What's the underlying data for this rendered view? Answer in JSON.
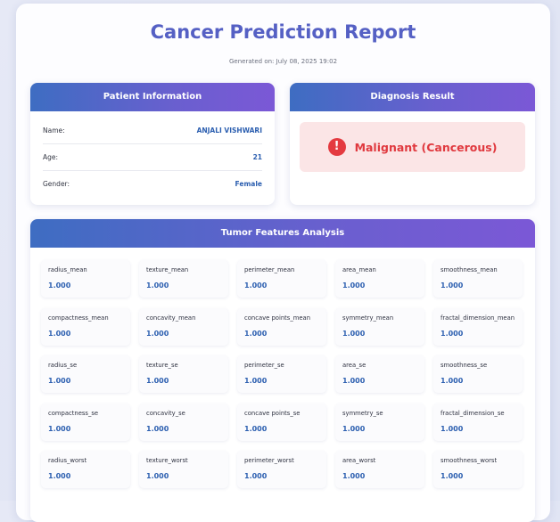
{
  "report": {
    "title": "Cancer Prediction Report",
    "generated": "Generated on: July 08, 2025 19:02"
  },
  "patient": {
    "header": "Patient Information",
    "rows": [
      {
        "label": "Name:",
        "value": "ANJALI VISHWARI"
      },
      {
        "label": "Age:",
        "value": "21"
      },
      {
        "label": "Gender:",
        "value": "Female"
      }
    ]
  },
  "diagnosis": {
    "header": "Diagnosis Result",
    "icon": "alert-icon",
    "icon_glyph": "!",
    "result": "Malignant (Cancerous)",
    "color": "#e0393f"
  },
  "features": {
    "header": "Tumor Features Analysis",
    "items": [
      {
        "name": "radius_mean",
        "value": "1.000"
      },
      {
        "name": "texture_mean",
        "value": "1.000"
      },
      {
        "name": "perimeter_mean",
        "value": "1.000"
      },
      {
        "name": "area_mean",
        "value": "1.000"
      },
      {
        "name": "smoothness_mean",
        "value": "1.000"
      },
      {
        "name": "compactness_mean",
        "value": "1.000"
      },
      {
        "name": "concavity_mean",
        "value": "1.000"
      },
      {
        "name": "concave points_mean",
        "value": "1.000"
      },
      {
        "name": "symmetry_mean",
        "value": "1.000"
      },
      {
        "name": "fractal_dimension_mean",
        "value": "1.000"
      },
      {
        "name": "radius_se",
        "value": "1.000"
      },
      {
        "name": "texture_se",
        "value": "1.000"
      },
      {
        "name": "perimeter_se",
        "value": "1.000"
      },
      {
        "name": "area_se",
        "value": "1.000"
      },
      {
        "name": "smoothness_se",
        "value": "1.000"
      },
      {
        "name": "compactness_se",
        "value": "1.000"
      },
      {
        "name": "concavity_se",
        "value": "1.000"
      },
      {
        "name": "concave points_se",
        "value": "1.000"
      },
      {
        "name": "symmetry_se",
        "value": "1.000"
      },
      {
        "name": "fractal_dimension_se",
        "value": "1.000"
      },
      {
        "name": "radius_worst",
        "value": "1.000"
      },
      {
        "name": "texture_worst",
        "value": "1.000"
      },
      {
        "name": "perimeter_worst",
        "value": "1.000"
      },
      {
        "name": "area_worst",
        "value": "1.000"
      },
      {
        "name": "smoothness_worst",
        "value": "1.000"
      }
    ]
  },
  "colors": {
    "title": "#5560c4",
    "accent_value": "#2c5fb0",
    "header_gradient_start": "#3e6dc2",
    "header_gradient_end": "#7b58d6",
    "malignant_bg": "#fbe5e6"
  }
}
